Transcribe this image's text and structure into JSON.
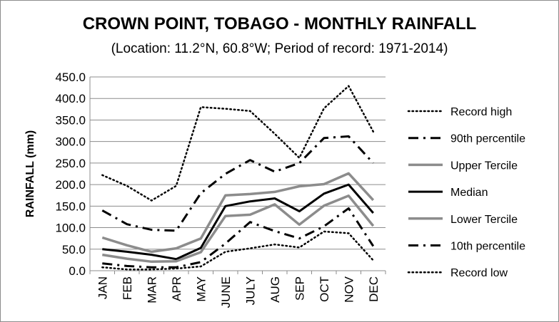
{
  "chart_data": {
    "type": "line",
    "title": "CROWN POINT, TOBAGO - MONTHLY RAINFALL",
    "subtitle": "(Location: 11.2°N, 60.8°W; Period of record: 1971-2014)",
    "ylabel": "RAINFALL (mm)",
    "xlabel": "",
    "ylim": [
      0,
      450
    ],
    "yticks": [
      "0.0",
      "50.0",
      "100.0",
      "150.0",
      "200.0",
      "250.0",
      "300.0",
      "350.0",
      "400.0",
      "450.0"
    ],
    "categories": [
      "JAN",
      "FEB",
      "MAR",
      "APR",
      "MAY",
      "JUNE",
      "JULY",
      "AUG",
      "SEP",
      "OCT",
      "NOV",
      "DEC"
    ],
    "grid": true,
    "legend_position": "right",
    "series": [
      {
        "name": "Record high",
        "style": "dotted",
        "color": "#000000",
        "values": [
          222,
          197,
          163,
          197,
          380,
          376,
          371,
          318,
          262,
          377,
          429,
          323
        ]
      },
      {
        "name": "90th percentile",
        "style": "dashdot",
        "color": "#000000",
        "values": [
          140,
          108,
          95,
          93,
          180,
          225,
          257,
          230,
          250,
          308,
          312,
          250
        ]
      },
      {
        "name": "Upper Tercile",
        "style": "solid",
        "color": "#8c8c8c",
        "values": [
          77,
          59,
          44,
          52,
          75,
          175,
          178,
          183,
          196,
          201,
          226,
          164
        ]
      },
      {
        "name": "Median",
        "style": "solid",
        "color": "#000000",
        "values": [
          50,
          44,
          37,
          27,
          53,
          150,
          161,
          168,
          138,
          179,
          200,
          134
        ]
      },
      {
        "name": "Lower Tercile",
        "style": "solid",
        "color": "#8c8c8c",
        "values": [
          37,
          28,
          21,
          22,
          43,
          127,
          130,
          154,
          107,
          151,
          174,
          104
        ]
      },
      {
        "name": "10th percentile",
        "style": "dashdot",
        "color": "#000000",
        "values": [
          17,
          11,
          8,
          8,
          20,
          63,
          113,
          92,
          75,
          103,
          145,
          57
        ]
      },
      {
        "name": "Record low",
        "style": "dotted",
        "color": "#000000",
        "values": [
          8,
          3,
          3,
          5,
          10,
          44,
          52,
          61,
          54,
          91,
          87,
          24
        ]
      }
    ]
  }
}
